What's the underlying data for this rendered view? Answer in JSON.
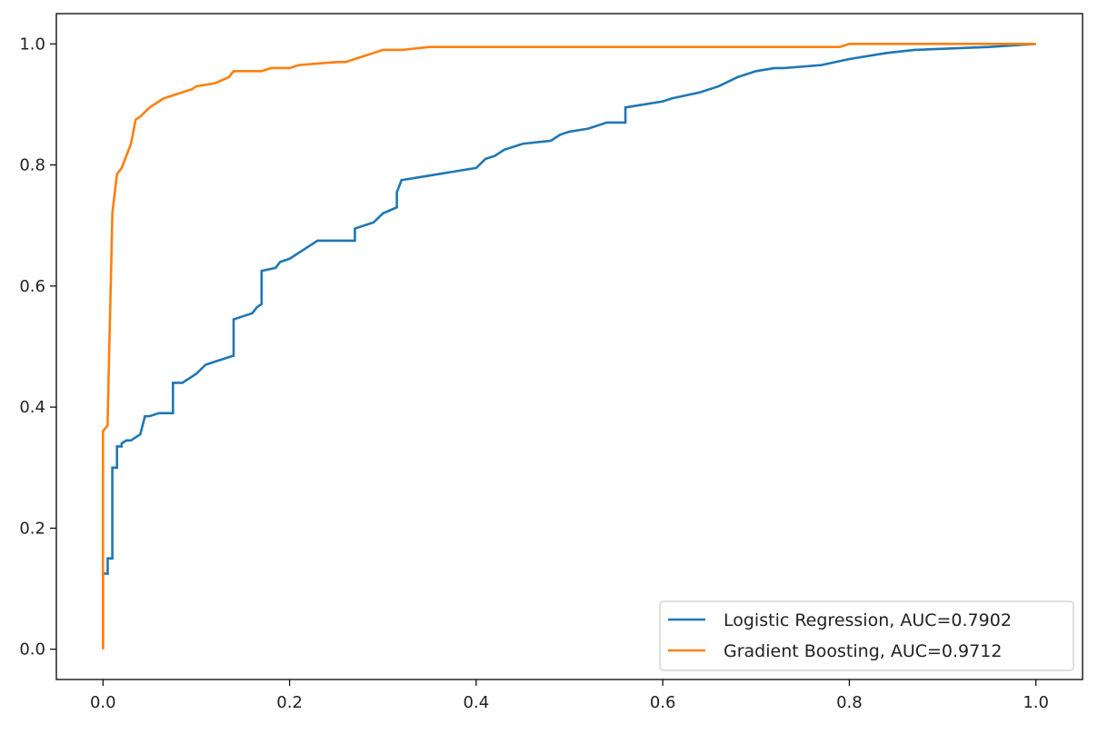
{
  "chart_data": {
    "type": "line",
    "title": "",
    "xlabel": "",
    "ylabel": "",
    "xlim": [
      -0.05,
      1.05
    ],
    "ylim": [
      -0.05,
      1.05
    ],
    "x_ticks": [
      "0.0",
      "0.2",
      "0.4",
      "0.6",
      "0.8",
      "1.0"
    ],
    "y_ticks": [
      "0.0",
      "0.2",
      "0.4",
      "0.6",
      "0.8",
      "1.0"
    ],
    "grid": false,
    "legend_position": "lower-right",
    "series": [
      {
        "name": "Logistic Regression, AUC=0.7902",
        "color": "#1f77b4",
        "x": [
          0.0,
          0.0,
          0.005,
          0.005,
          0.01,
          0.01,
          0.015,
          0.015,
          0.02,
          0.02,
          0.025,
          0.03,
          0.035,
          0.04,
          0.045,
          0.05,
          0.06,
          0.065,
          0.075,
          0.075,
          0.085,
          0.09,
          0.095,
          0.1,
          0.11,
          0.12,
          0.14,
          0.14,
          0.15,
          0.16,
          0.165,
          0.17,
          0.17,
          0.185,
          0.19,
          0.2,
          0.21,
          0.22,
          0.23,
          0.27,
          0.27,
          0.29,
          0.3,
          0.315,
          0.315,
          0.32,
          0.34,
          0.36,
          0.38,
          0.4,
          0.41,
          0.42,
          0.43,
          0.45,
          0.48,
          0.49,
          0.5,
          0.52,
          0.54,
          0.56,
          0.56,
          0.6,
          0.61,
          0.64,
          0.66,
          0.68,
          0.7,
          0.72,
          0.73,
          0.77,
          0.8,
          0.84,
          0.87,
          0.95,
          1.0
        ],
        "y": [
          0.0,
          0.125,
          0.125,
          0.15,
          0.15,
          0.3,
          0.3,
          0.335,
          0.335,
          0.34,
          0.345,
          0.345,
          0.35,
          0.355,
          0.385,
          0.385,
          0.39,
          0.39,
          0.39,
          0.44,
          0.44,
          0.445,
          0.45,
          0.455,
          0.47,
          0.475,
          0.485,
          0.545,
          0.55,
          0.555,
          0.565,
          0.57,
          0.625,
          0.63,
          0.64,
          0.645,
          0.655,
          0.665,
          0.675,
          0.675,
          0.695,
          0.705,
          0.72,
          0.73,
          0.755,
          0.775,
          0.78,
          0.785,
          0.79,
          0.795,
          0.81,
          0.815,
          0.825,
          0.835,
          0.84,
          0.85,
          0.855,
          0.86,
          0.87,
          0.87,
          0.895,
          0.905,
          0.91,
          0.92,
          0.93,
          0.945,
          0.955,
          0.96,
          0.96,
          0.965,
          0.975,
          0.985,
          0.99,
          0.995,
          1.0
        ]
      },
      {
        "name": "Gradient Boosting, AUC=0.9712",
        "color": "#ff7f0e",
        "x": [
          0.0,
          0.0,
          0.0,
          0.005,
          0.005,
          0.01,
          0.01,
          0.015,
          0.02,
          0.025,
          0.03,
          0.035,
          0.04,
          0.05,
          0.06,
          0.065,
          0.075,
          0.085,
          0.095,
          0.1,
          0.12,
          0.135,
          0.14,
          0.17,
          0.18,
          0.2,
          0.21,
          0.25,
          0.26,
          0.28,
          0.29,
          0.3,
          0.32,
          0.35,
          0.4,
          0.6,
          0.79,
          0.8,
          0.9,
          1.0
        ],
        "y": [
          0.0,
          0.12,
          0.36,
          0.37,
          0.38,
          0.715,
          0.72,
          0.785,
          0.795,
          0.815,
          0.835,
          0.875,
          0.88,
          0.895,
          0.905,
          0.91,
          0.915,
          0.92,
          0.925,
          0.93,
          0.935,
          0.945,
          0.955,
          0.955,
          0.96,
          0.96,
          0.965,
          0.97,
          0.97,
          0.98,
          0.985,
          0.99,
          0.99,
          0.995,
          0.995,
          0.995,
          0.995,
          1.0,
          1.0,
          1.0
        ]
      }
    ]
  }
}
